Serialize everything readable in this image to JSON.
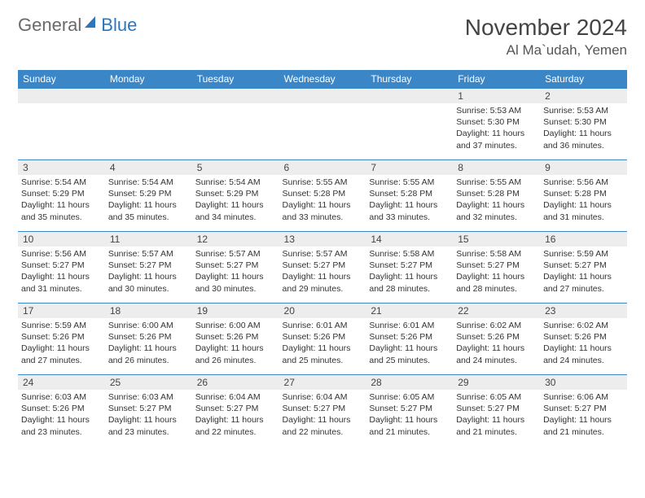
{
  "logo": {
    "text_gray": "General",
    "text_blue": "Blue"
  },
  "title": "November 2024",
  "location": "Al Ma`udah, Yemen",
  "colors": {
    "header_bg": "#3b86c7",
    "header_text": "#ffffff",
    "daynum_bg": "#ededed",
    "rule": "#3b86c7",
    "logo_gray": "#6a6a6a",
    "logo_blue": "#2b76bf"
  },
  "day_headers": [
    "Sunday",
    "Monday",
    "Tuesday",
    "Wednesday",
    "Thursday",
    "Friday",
    "Saturday"
  ],
  "weeks": [
    [
      null,
      null,
      null,
      null,
      null,
      {
        "n": "1",
        "sunrise": "5:53 AM",
        "sunset": "5:30 PM",
        "dl": "11 hours and 37 minutes."
      },
      {
        "n": "2",
        "sunrise": "5:53 AM",
        "sunset": "5:30 PM",
        "dl": "11 hours and 36 minutes."
      }
    ],
    [
      {
        "n": "3",
        "sunrise": "5:54 AM",
        "sunset": "5:29 PM",
        "dl": "11 hours and 35 minutes."
      },
      {
        "n": "4",
        "sunrise": "5:54 AM",
        "sunset": "5:29 PM",
        "dl": "11 hours and 35 minutes."
      },
      {
        "n": "5",
        "sunrise": "5:54 AM",
        "sunset": "5:29 PM",
        "dl": "11 hours and 34 minutes."
      },
      {
        "n": "6",
        "sunrise": "5:55 AM",
        "sunset": "5:28 PM",
        "dl": "11 hours and 33 minutes."
      },
      {
        "n": "7",
        "sunrise": "5:55 AM",
        "sunset": "5:28 PM",
        "dl": "11 hours and 33 minutes."
      },
      {
        "n": "8",
        "sunrise": "5:55 AM",
        "sunset": "5:28 PM",
        "dl": "11 hours and 32 minutes."
      },
      {
        "n": "9",
        "sunrise": "5:56 AM",
        "sunset": "5:28 PM",
        "dl": "11 hours and 31 minutes."
      }
    ],
    [
      {
        "n": "10",
        "sunrise": "5:56 AM",
        "sunset": "5:27 PM",
        "dl": "11 hours and 31 minutes."
      },
      {
        "n": "11",
        "sunrise": "5:57 AM",
        "sunset": "5:27 PM",
        "dl": "11 hours and 30 minutes."
      },
      {
        "n": "12",
        "sunrise": "5:57 AM",
        "sunset": "5:27 PM",
        "dl": "11 hours and 30 minutes."
      },
      {
        "n": "13",
        "sunrise": "5:57 AM",
        "sunset": "5:27 PM",
        "dl": "11 hours and 29 minutes."
      },
      {
        "n": "14",
        "sunrise": "5:58 AM",
        "sunset": "5:27 PM",
        "dl": "11 hours and 28 minutes."
      },
      {
        "n": "15",
        "sunrise": "5:58 AM",
        "sunset": "5:27 PM",
        "dl": "11 hours and 28 minutes."
      },
      {
        "n": "16",
        "sunrise": "5:59 AM",
        "sunset": "5:27 PM",
        "dl": "11 hours and 27 minutes."
      }
    ],
    [
      {
        "n": "17",
        "sunrise": "5:59 AM",
        "sunset": "5:26 PM",
        "dl": "11 hours and 27 minutes."
      },
      {
        "n": "18",
        "sunrise": "6:00 AM",
        "sunset": "5:26 PM",
        "dl": "11 hours and 26 minutes."
      },
      {
        "n": "19",
        "sunrise": "6:00 AM",
        "sunset": "5:26 PM",
        "dl": "11 hours and 26 minutes."
      },
      {
        "n": "20",
        "sunrise": "6:01 AM",
        "sunset": "5:26 PM",
        "dl": "11 hours and 25 minutes."
      },
      {
        "n": "21",
        "sunrise": "6:01 AM",
        "sunset": "5:26 PM",
        "dl": "11 hours and 25 minutes."
      },
      {
        "n": "22",
        "sunrise": "6:02 AM",
        "sunset": "5:26 PM",
        "dl": "11 hours and 24 minutes."
      },
      {
        "n": "23",
        "sunrise": "6:02 AM",
        "sunset": "5:26 PM",
        "dl": "11 hours and 24 minutes."
      }
    ],
    [
      {
        "n": "24",
        "sunrise": "6:03 AM",
        "sunset": "5:26 PM",
        "dl": "11 hours and 23 minutes."
      },
      {
        "n": "25",
        "sunrise": "6:03 AM",
        "sunset": "5:27 PM",
        "dl": "11 hours and 23 minutes."
      },
      {
        "n": "26",
        "sunrise": "6:04 AM",
        "sunset": "5:27 PM",
        "dl": "11 hours and 22 minutes."
      },
      {
        "n": "27",
        "sunrise": "6:04 AM",
        "sunset": "5:27 PM",
        "dl": "11 hours and 22 minutes."
      },
      {
        "n": "28",
        "sunrise": "6:05 AM",
        "sunset": "5:27 PM",
        "dl": "11 hours and 21 minutes."
      },
      {
        "n": "29",
        "sunrise": "6:05 AM",
        "sunset": "5:27 PM",
        "dl": "11 hours and 21 minutes."
      },
      {
        "n": "30",
        "sunrise": "6:06 AM",
        "sunset": "5:27 PM",
        "dl": "11 hours and 21 minutes."
      }
    ]
  ],
  "labels": {
    "sunrise": "Sunrise: ",
    "sunset": "Sunset: ",
    "daylight": "Daylight: "
  }
}
